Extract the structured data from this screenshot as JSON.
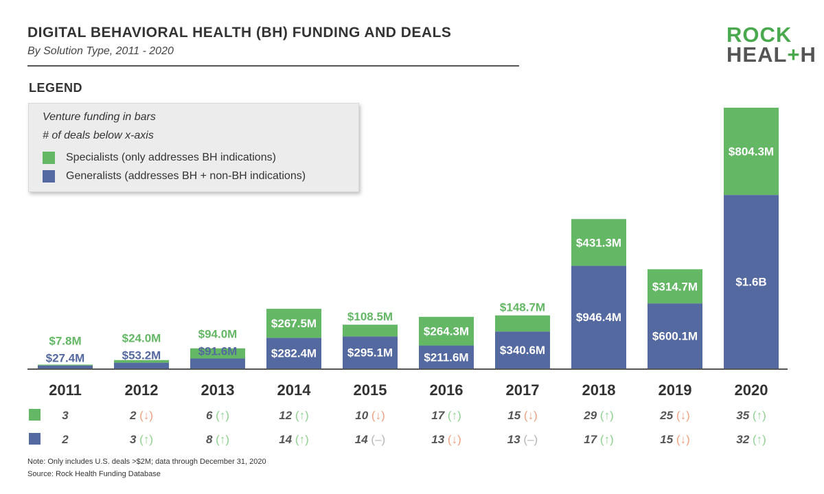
{
  "header": {
    "title": "DIGITAL BEHAVIORAL HEALTH (BH) FUNDING AND DEALS",
    "subtitle": "By Solution Type, 2011 - 2020"
  },
  "logo": {
    "line1": "ROCK",
    "line2_a": "HEAL",
    "line2_plus": "+",
    "line2_b": "H"
  },
  "legend": {
    "heading": "LEGEND",
    "line1": "Venture funding in bars",
    "line2": "# of deals below x-axis",
    "specialists_label": "Specialists (only addresses BH indications)",
    "generalists_label": "Generalists (addresses BH + non-BH indications)"
  },
  "colors": {
    "specialists": "#64b765",
    "generalists": "#5469a0",
    "axis": "#555555",
    "up": "#8fd08f",
    "down": "#f0a080",
    "flat": "#b5b5b5",
    "deal_text": "#555555"
  },
  "chart_data": {
    "type": "bar",
    "stacked": true,
    "categories": [
      "2011",
      "2012",
      "2013",
      "2014",
      "2015",
      "2016",
      "2017",
      "2018",
      "2019",
      "2020"
    ],
    "series": [
      {
        "name": "Generalists (addresses BH + non-BH indications)",
        "values": [
          27.4,
          53.2,
          91.6,
          282.4,
          295.1,
          211.6,
          340.6,
          946.4,
          600.1,
          1600
        ],
        "labels": [
          "$27.4M",
          "$53.2M",
          "$91.6M",
          "$282.4M",
          "$295.1M",
          "$211.6M",
          "$340.6M",
          "$946.4M",
          "$600.1M",
          "$1.6B"
        ]
      },
      {
        "name": "Specialists (only addresses BH indications)",
        "values": [
          7.8,
          24.0,
          94.0,
          267.5,
          108.5,
          264.3,
          148.7,
          431.3,
          314.7,
          804.3
        ],
        "labels": [
          "$7.8M",
          "$24.0M",
          "$94.0M",
          "$267.5M",
          "$108.5M",
          "$264.3M",
          "$148.7M",
          "$431.3M",
          "$314.7M",
          "$804.3M"
        ]
      }
    ],
    "ylim": [
      0,
      2404.3
    ],
    "deals": {
      "specialists": [
        {
          "count": "3",
          "trend": ""
        },
        {
          "count": "2",
          "trend": "down"
        },
        {
          "count": "6",
          "trend": "up"
        },
        {
          "count": "12",
          "trend": "up"
        },
        {
          "count": "10",
          "trend": "down"
        },
        {
          "count": "17",
          "trend": "up"
        },
        {
          "count": "15",
          "trend": "down"
        },
        {
          "count": "29",
          "trend": "up"
        },
        {
          "count": "25",
          "trend": "down"
        },
        {
          "count": "35",
          "trend": "up"
        }
      ],
      "generalists": [
        {
          "count": "2",
          "trend": ""
        },
        {
          "count": "3",
          "trend": "up"
        },
        {
          "count": "8",
          "trend": "up"
        },
        {
          "count": "14",
          "trend": "up"
        },
        {
          "count": "14",
          "trend": "flat"
        },
        {
          "count": "13",
          "trend": "down"
        },
        {
          "count": "13",
          "trend": "flat"
        },
        {
          "count": "17",
          "trend": "up"
        },
        {
          "count": "15",
          "trend": "down"
        },
        {
          "count": "32",
          "trend": "up"
        }
      ]
    }
  },
  "footer": {
    "note": "Note: Only includes U.S. deals >$2M; data through December 31, 2020",
    "source": "Source: Rock Health Funding Database"
  }
}
